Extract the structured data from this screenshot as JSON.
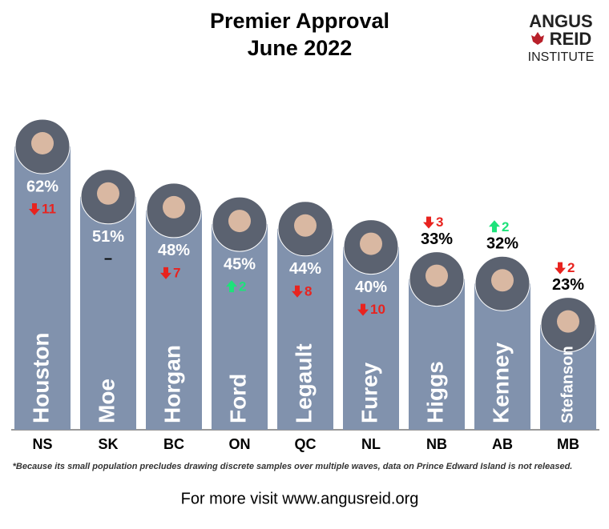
{
  "chart_data": {
    "type": "bar",
    "title": "Premier Approval",
    "subtitle": "June 2022",
    "logo": [
      "ANGUS",
      "REID",
      "INSTITUTE"
    ],
    "categories": [
      "NS",
      "SK",
      "BC",
      "ON",
      "QC",
      "NL",
      "NB",
      "AB",
      "MB"
    ],
    "names": [
      "Houston",
      "Moe",
      "Horgan",
      "Ford",
      "Legault",
      "Furey",
      "Higgs",
      "Kenney",
      "Stefanson"
    ],
    "values": [
      62,
      51,
      48,
      45,
      44,
      40,
      33,
      32,
      23
    ],
    "value_labels": [
      "62%",
      "51%",
      "48%",
      "45%",
      "44%",
      "40%",
      "33%",
      "32%",
      "23%"
    ],
    "changes": [
      -11,
      0,
      -7,
      2,
      -8,
      -10,
      -3,
      2,
      -2
    ],
    "change_labels": [
      "11",
      "–",
      "7",
      "2",
      "8",
      "10",
      "3",
      "2",
      "2"
    ],
    "color": "#8192ad",
    "up_color": "#1ee27a",
    "down_color": "#e8231f",
    "footnote": "*Because its small population precludes drawing discrete samples over multiple waves, data on Prince Edward Island is not released.",
    "footer": "For more visit www.angusreid.org"
  }
}
